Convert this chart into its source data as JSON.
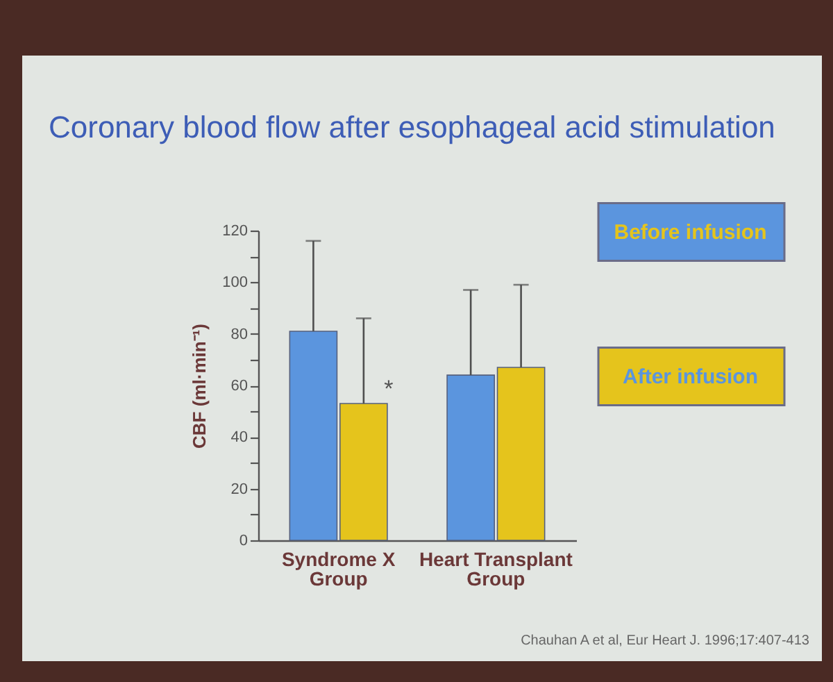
{
  "chart_data": {
    "type": "bar",
    "title": "Coronary blood flow after esophageal acid stimulation",
    "ylabel": "CBF (ml·min⁻¹)",
    "categories": [
      "Syndrome X\nGroup",
      "Heart Transplant\nGroup"
    ],
    "series": [
      {
        "name": "Before infusion",
        "color": "#5b95de",
        "values": [
          81,
          64
        ],
        "errors": [
          [
            81,
            116
          ],
          [
            64,
            97
          ]
        ]
      },
      {
        "name": "After infusion",
        "color": "#e5c41c",
        "values": [
          53,
          67
        ],
        "errors": [
          [
            53,
            86
          ],
          [
            67,
            99
          ]
        ]
      }
    ],
    "ylim": [
      0,
      120
    ],
    "yticks": [
      0,
      {
        "value": 10,
        "label": null
      },
      20,
      {
        "value": 30,
        "label": null
      },
      40,
      {
        "value": 50,
        "label": null
      },
      60,
      {
        "value": 70,
        "label": null
      },
      80,
      {
        "value": 90,
        "label": null
      },
      100,
      {
        "value": 110,
        "label": null
      },
      120
    ],
    "legend": "top right",
    "annotations": [
      {
        "text": "*",
        "x": "Syndrome X\nGroup",
        "y": 53
      },
      "Chauhan A et al, Eur Heart J. 1996;17:407-413"
    ]
  }
}
